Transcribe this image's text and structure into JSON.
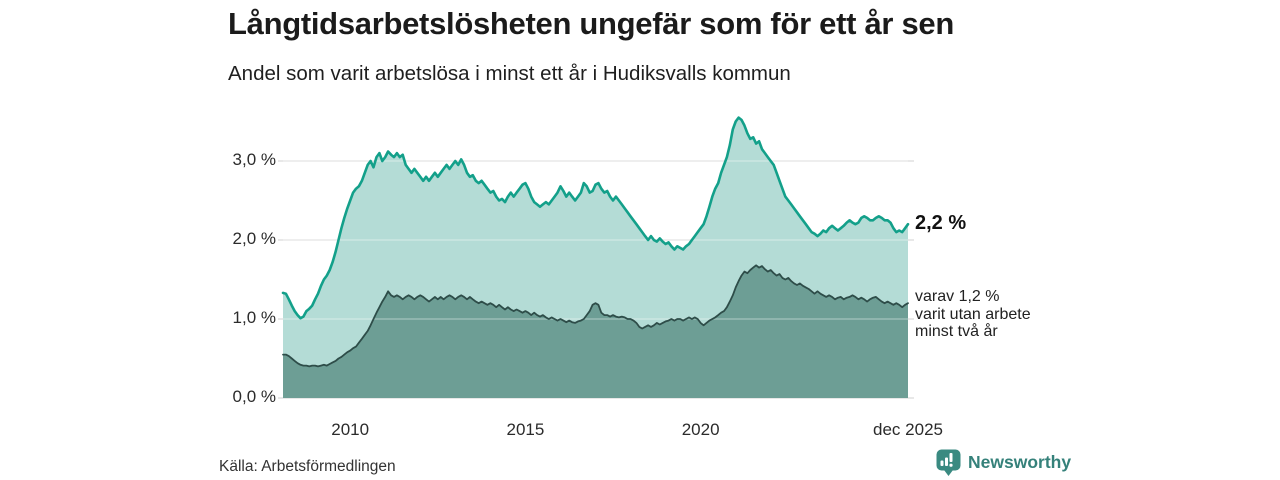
{
  "header": {
    "title": "Långtidsarbetslösheten ungefär som för ett år sen",
    "subtitle": "Andel som varit arbetslösa i minst ett år i Hudiksvalls kommun"
  },
  "annotations": {
    "total_end_label": "2,2 %",
    "sub_end_line1": "varav 1,2 %",
    "sub_end_line2": "varit utan arbete",
    "sub_end_line3": "minst två år"
  },
  "footer": {
    "source": "Källa: Arbetsförmedlingen",
    "brand": "Newsworthy"
  },
  "colors": {
    "accent_line": "#13a08a",
    "light_fill": "#b4dcd6",
    "dark_fill": "#6d9e95",
    "dark_line": "#2e4d49",
    "grid": "#d9d9d9",
    "title_text": "#1b1b1b",
    "brand_teal": "#35817a"
  },
  "chart_data": {
    "type": "area",
    "title": "Långtidsarbetslösheten ungefär som för ett år sen",
    "subtitle": "Andel som varit arbetslösa i minst ett år i Hudiksvalls kommun",
    "xlabel": "",
    "ylabel": "",
    "unit": "%",
    "frequency": "monthly",
    "x_start": "2008-02",
    "x_end": "2025-12",
    "ylim": [
      0,
      3.8
    ],
    "grid": true,
    "y_ticks": [
      {
        "value": 3,
        "label": "3,0 %"
      },
      {
        "value": 2,
        "label": "2,0 %"
      },
      {
        "value": 1,
        "label": "1,0 %"
      },
      {
        "value": 0,
        "label": "0,0 %"
      }
    ],
    "x_ticks": [
      {
        "value": 2010,
        "label": "2010"
      },
      {
        "value": 2015,
        "label": "2015"
      },
      {
        "value": 2020,
        "label": "2020"
      },
      {
        "value": 2025.917,
        "label": "dec 2025"
      }
    ],
    "series": [
      {
        "name": "Andel arbetslösa minst ett år",
        "end_value": 2.2,
        "end_label": "2,2 %",
        "color": "#13a08a",
        "fill": "#b4dcd6",
        "values": [
          1.33,
          1.32,
          1.25,
          1.17,
          1.1,
          1.05,
          1.01,
          1.03,
          1.1,
          1.13,
          1.17,
          1.25,
          1.32,
          1.42,
          1.5,
          1.55,
          1.62,
          1.72,
          1.85,
          2.0,
          2.15,
          2.28,
          2.4,
          2.5,
          2.6,
          2.65,
          2.68,
          2.75,
          2.85,
          2.95,
          3.0,
          2.92,
          3.05,
          3.1,
          3.0,
          3.05,
          3.12,
          3.08,
          3.05,
          3.1,
          3.05,
          3.08,
          2.95,
          2.9,
          2.85,
          2.9,
          2.85,
          2.8,
          2.75,
          2.8,
          2.75,
          2.8,
          2.85,
          2.8,
          2.85,
          2.9,
          2.95,
          2.9,
          2.95,
          3.0,
          2.95,
          3.02,
          2.95,
          2.85,
          2.8,
          2.82,
          2.75,
          2.72,
          2.75,
          2.7,
          2.65,
          2.6,
          2.62,
          2.55,
          2.5,
          2.52,
          2.48,
          2.55,
          2.6,
          2.55,
          2.6,
          2.65,
          2.7,
          2.72,
          2.65,
          2.55,
          2.48,
          2.45,
          2.42,
          2.45,
          2.48,
          2.45,
          2.5,
          2.55,
          2.6,
          2.68,
          2.62,
          2.55,
          2.6,
          2.55,
          2.5,
          2.55,
          2.6,
          2.72,
          2.68,
          2.6,
          2.62,
          2.7,
          2.72,
          2.65,
          2.6,
          2.62,
          2.55,
          2.5,
          2.55,
          2.5,
          2.45,
          2.4,
          2.35,
          2.3,
          2.25,
          2.2,
          2.15,
          2.1,
          2.05,
          2.0,
          2.05,
          2.0,
          1.98,
          2.02,
          1.98,
          1.95,
          1.97,
          1.92,
          1.88,
          1.92,
          1.9,
          1.88,
          1.92,
          1.95,
          2.0,
          2.05,
          2.1,
          2.15,
          2.2,
          2.3,
          2.42,
          2.55,
          2.65,
          2.72,
          2.85,
          2.95,
          3.05,
          3.2,
          3.4,
          3.5,
          3.55,
          3.52,
          3.45,
          3.35,
          3.28,
          3.3,
          3.22,
          3.25,
          3.15,
          3.1,
          3.05,
          3.0,
          2.95,
          2.85,
          2.75,
          2.65,
          2.55,
          2.5,
          2.45,
          2.4,
          2.35,
          2.3,
          2.25,
          2.2,
          2.15,
          2.1,
          2.08,
          2.05,
          2.08,
          2.12,
          2.1,
          2.15,
          2.18,
          2.15,
          2.12,
          2.15,
          2.18,
          2.22,
          2.25,
          2.22,
          2.2,
          2.22,
          2.28,
          2.3,
          2.28,
          2.25,
          2.25,
          2.28,
          2.3,
          2.28,
          2.25,
          2.25,
          2.22,
          2.15,
          2.1,
          2.12,
          2.1,
          2.15,
          2.2
        ]
      },
      {
        "name": "varav utan arbete minst två år",
        "end_value": 1.2,
        "end_label": "varav 1,2 % varit utan arbete minst två år",
        "color": "#2e4d49",
        "fill": "#6d9e95",
        "values": [
          0.55,
          0.55,
          0.53,
          0.5,
          0.47,
          0.44,
          0.42,
          0.41,
          0.41,
          0.4,
          0.41,
          0.41,
          0.4,
          0.41,
          0.42,
          0.41,
          0.43,
          0.45,
          0.47,
          0.5,
          0.52,
          0.55,
          0.58,
          0.6,
          0.63,
          0.65,
          0.7,
          0.75,
          0.8,
          0.85,
          0.92,
          1.0,
          1.08,
          1.15,
          1.22,
          1.28,
          1.35,
          1.3,
          1.28,
          1.3,
          1.28,
          1.25,
          1.28,
          1.3,
          1.28,
          1.25,
          1.28,
          1.3,
          1.28,
          1.25,
          1.22,
          1.25,
          1.28,
          1.25,
          1.28,
          1.25,
          1.28,
          1.3,
          1.28,
          1.25,
          1.28,
          1.3,
          1.28,
          1.25,
          1.28,
          1.25,
          1.22,
          1.2,
          1.22,
          1.2,
          1.18,
          1.2,
          1.18,
          1.15,
          1.18,
          1.15,
          1.12,
          1.15,
          1.12,
          1.1,
          1.12,
          1.1,
          1.08,
          1.1,
          1.08,
          1.05,
          1.08,
          1.05,
          1.03,
          1.05,
          1.02,
          1.0,
          1.02,
          1.0,
          0.98,
          1.0,
          0.98,
          0.96,
          0.98,
          0.96,
          0.95,
          0.97,
          0.98,
          1.0,
          1.05,
          1.1,
          1.18,
          1.2,
          1.18,
          1.08,
          1.05,
          1.05,
          1.03,
          1.05,
          1.03,
          1.02,
          1.03,
          1.02,
          1.0,
          1.0,
          0.98,
          0.95,
          0.9,
          0.88,
          0.9,
          0.92,
          0.9,
          0.92,
          0.95,
          0.93,
          0.95,
          0.97,
          0.98,
          1.0,
          0.98,
          1.0,
          1.0,
          0.98,
          1.0,
          1.02,
          1.0,
          1.02,
          1.0,
          0.95,
          0.92,
          0.95,
          0.98,
          1.0,
          1.02,
          1.05,
          1.08,
          1.1,
          1.15,
          1.22,
          1.3,
          1.4,
          1.48,
          1.55,
          1.6,
          1.58,
          1.62,
          1.65,
          1.68,
          1.65,
          1.67,
          1.63,
          1.6,
          1.62,
          1.58,
          1.55,
          1.57,
          1.52,
          1.5,
          1.52,
          1.48,
          1.45,
          1.43,
          1.45,
          1.42,
          1.4,
          1.38,
          1.35,
          1.32,
          1.35,
          1.32,
          1.3,
          1.28,
          1.3,
          1.28,
          1.25,
          1.27,
          1.28,
          1.25,
          1.27,
          1.28,
          1.3,
          1.28,
          1.25,
          1.27,
          1.25,
          1.22,
          1.25,
          1.27,
          1.28,
          1.25,
          1.22,
          1.2,
          1.22,
          1.2,
          1.18,
          1.2,
          1.18,
          1.15,
          1.18,
          1.2
        ]
      }
    ]
  }
}
